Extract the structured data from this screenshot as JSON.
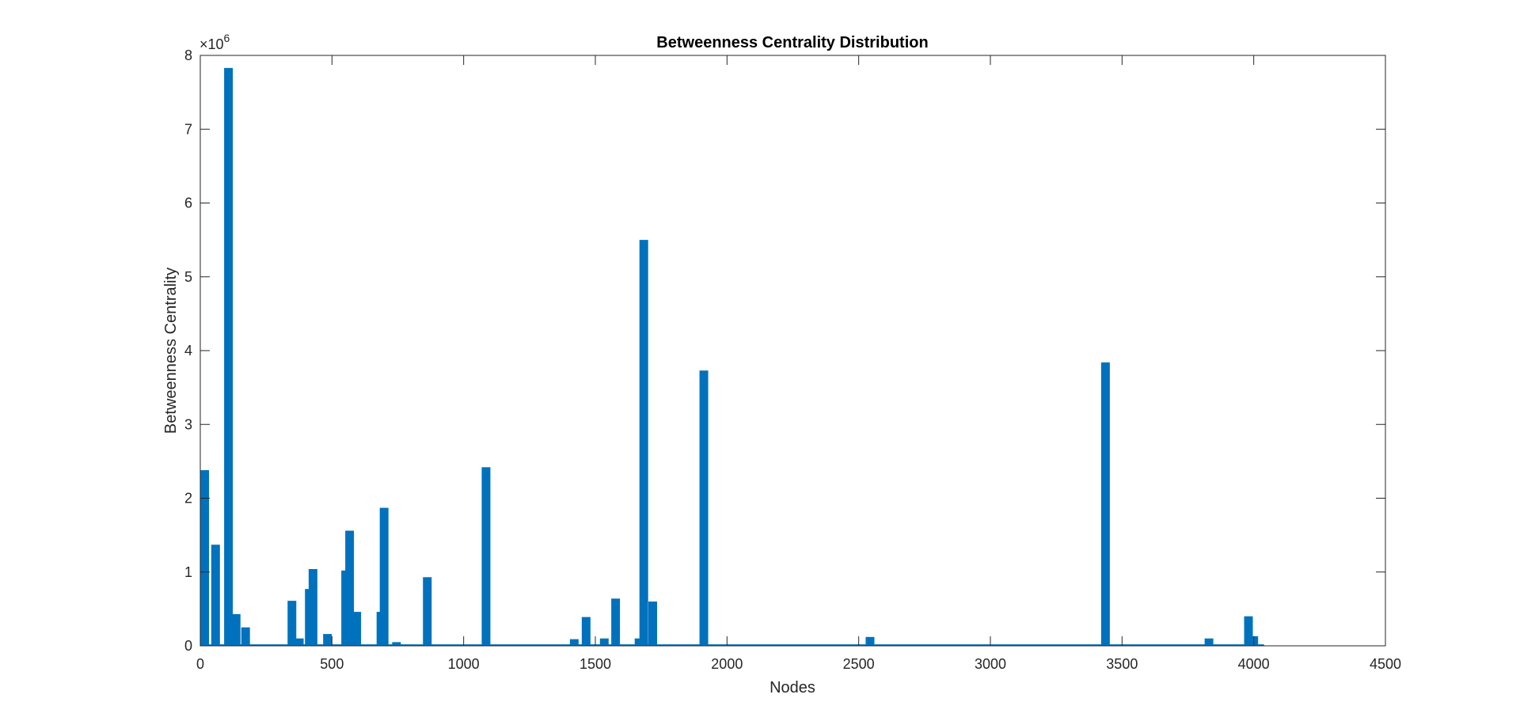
{
  "chart_data": {
    "type": "bar",
    "title": "Betweenness Centrality Distribution",
    "xlabel": "Nodes",
    "ylabel": "Betweenness Centrality",
    "xlim": [
      0,
      4500
    ],
    "ylim": [
      0,
      8000000
    ],
    "x_ticks": [
      "0",
      "500",
      "1000",
      "1500",
      "2000",
      "2500",
      "3000",
      "3500",
      "4000",
      "4500"
    ],
    "y_ticks": [
      "0",
      "1",
      "2",
      "3",
      "4",
      "5",
      "6",
      "7",
      "8"
    ],
    "y_multiplier": {
      "base": "×10",
      "exponent": "6"
    },
    "x_data_range": [
      0,
      4039
    ],
    "baseline_value": 20000,
    "bar_color": "#0072BD",
    "grid": false,
    "peaks": [
      {
        "x": 1,
        "y": 2380000
      },
      {
        "x": 58,
        "y": 1370000
      },
      {
        "x": 107,
        "y": 7830000
      },
      {
        "x": 136,
        "y": 430000
      },
      {
        "x": 172,
        "y": 250000
      },
      {
        "x": 348,
        "y": 610000
      },
      {
        "x": 376,
        "y": 100000
      },
      {
        "x": 414,
        "y": 770000
      },
      {
        "x": 428,
        "y": 1040000
      },
      {
        "x": 483,
        "y": 160000
      },
      {
        "x": 552,
        "y": 1020000
      },
      {
        "x": 567,
        "y": 1560000
      },
      {
        "x": 594,
        "y": 460000
      },
      {
        "x": 686,
        "y": 460000
      },
      {
        "x": 698,
        "y": 1870000
      },
      {
        "x": 745,
        "y": 50000
      },
      {
        "x": 862,
        "y": 930000
      },
      {
        "x": 1085,
        "y": 2420000
      },
      {
        "x": 1420,
        "y": 90000
      },
      {
        "x": 1465,
        "y": 390000
      },
      {
        "x": 1534,
        "y": 100000
      },
      {
        "x": 1577,
        "y": 640000
      },
      {
        "x": 1666,
        "y": 100000
      },
      {
        "x": 1684,
        "y": 5500000
      },
      {
        "x": 1718,
        "y": 600000
      },
      {
        "x": 1912,
        "y": 3730000
      },
      {
        "x": 2543,
        "y": 120000
      },
      {
        "x": 3437,
        "y": 3840000
      },
      {
        "x": 3830,
        "y": 100000
      },
      {
        "x": 3980,
        "y": 400000
      },
      {
        "x": 4000,
        "y": 130000
      }
    ]
  }
}
